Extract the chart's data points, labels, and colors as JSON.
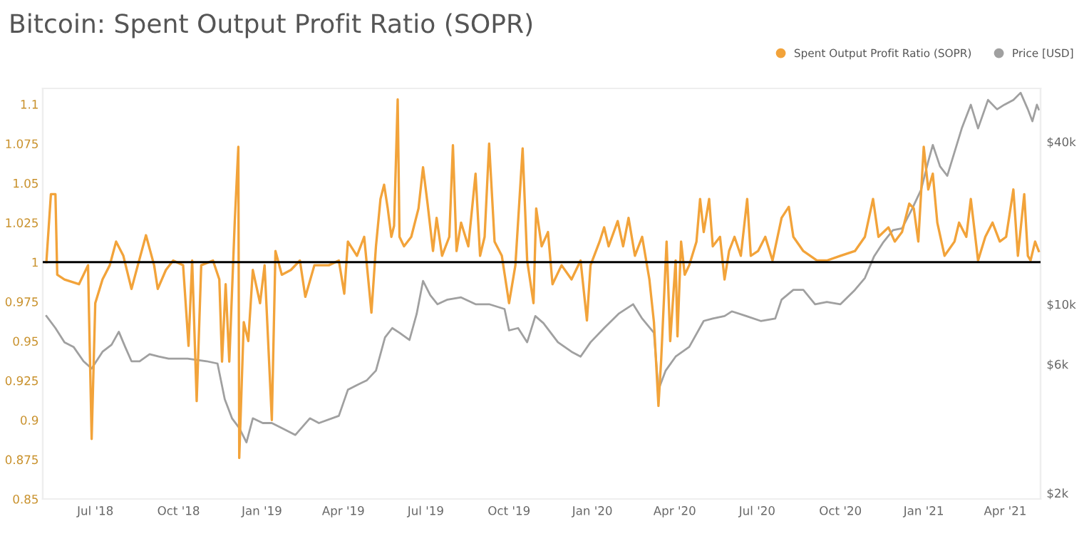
{
  "chart_data": {
    "type": "line",
    "title": "Bitcoin: Spent Output Profit Ratio (SOPR)",
    "xlim": [
      "2018-05-04",
      "2021-05-10"
    ],
    "xticks": [
      {
        "value": "2018-07-01",
        "label": "Jul '18"
      },
      {
        "value": "2018-10-01",
        "label": "Oct '18"
      },
      {
        "value": "2019-01-01",
        "label": "Jan '19"
      },
      {
        "value": "2019-04-01",
        "label": "Apr '19"
      },
      {
        "value": "2019-07-01",
        "label": "Jul '19"
      },
      {
        "value": "2019-10-01",
        "label": "Oct '19"
      },
      {
        "value": "2020-01-01",
        "label": "Jan '20"
      },
      {
        "value": "2020-04-01",
        "label": "Apr '20"
      },
      {
        "value": "2020-07-01",
        "label": "Jul '20"
      },
      {
        "value": "2020-10-01",
        "label": "Oct '20"
      },
      {
        "value": "2021-01-01",
        "label": "Jan '21"
      },
      {
        "value": "2021-04-01",
        "label": "Apr '21"
      }
    ],
    "ylim": [
      0.85,
      1.11
    ],
    "yticks": [
      0.85,
      0.875,
      0.9,
      0.925,
      0.95,
      0.975,
      1,
      1.025,
      1.05,
      1.075,
      1.1
    ],
    "log": "y2",
    "y2lim": [
      1900,
      63000
    ],
    "y2ticks": [
      {
        "value": 2000,
        "label": "$2k"
      },
      {
        "value": 6000,
        "label": "$6k"
      },
      {
        "value": 10000,
        "label": "$10k"
      },
      {
        "value": 40000,
        "label": "$40k"
      }
    ],
    "grid": false,
    "legend": "top right",
    "marker": "none",
    "line_style": "solid",
    "ref_lines": [
      {
        "axis": "y",
        "value": 1,
        "color": "#000000"
      }
    ],
    "series": [
      {
        "name": "Spent Output Profit Ratio (SOPR)",
        "color": "#f2a33a",
        "x": [
          "2018-05-08",
          "2018-05-13",
          "2018-05-18",
          "2018-05-20",
          "2018-05-28",
          "2018-06-13",
          "2018-06-23",
          "2018-06-27",
          "2018-07-01",
          "2018-07-09",
          "2018-07-17",
          "2018-07-24",
          "2018-08-01",
          "2018-08-10",
          "2018-08-17",
          "2018-08-26",
          "2018-09-04",
          "2018-09-08",
          "2018-09-17",
          "2018-09-25",
          "2018-10-06",
          "2018-10-12",
          "2018-10-16",
          "2018-10-21",
          "2018-10-26",
          "2018-11-08",
          "2018-11-15",
          "2018-11-18",
          "2018-11-22",
          "2018-11-26",
          "2018-12-02",
          "2018-12-04",
          "2018-12-06",
          "2018-12-07",
          "2018-12-12",
          "2018-12-17",
          "2018-12-22",
          "2018-12-30",
          "2019-01-04",
          "2019-01-12",
          "2019-01-16",
          "2019-01-23",
          "2019-02-02",
          "2019-02-12",
          "2019-02-18",
          "2019-02-28",
          "2019-03-16",
          "2019-03-27",
          "2019-04-02",
          "2019-04-06",
          "2019-04-16",
          "2019-04-24",
          "2019-05-02",
          "2019-05-07",
          "2019-05-12",
          "2019-05-16",
          "2019-05-20",
          "2019-05-24",
          "2019-05-27",
          "2019-05-31",
          "2019-06-02",
          "2019-06-07",
          "2019-06-15",
          "2019-06-23",
          "2019-06-28",
          "2019-07-03",
          "2019-07-09",
          "2019-07-13",
          "2019-07-19",
          "2019-07-27",
          "2019-07-31",
          "2019-08-04",
          "2019-08-09",
          "2019-08-17",
          "2019-08-25",
          "2019-08-30",
          "2019-09-04",
          "2019-09-09",
          "2019-09-15",
          "2019-09-23",
          "2019-10-01",
          "2019-10-08",
          "2019-10-16",
          "2019-10-21",
          "2019-10-28",
          "2019-10-31",
          "2019-11-06",
          "2019-11-13",
          "2019-11-18",
          "2019-11-28",
          "2019-12-09",
          "2019-12-19",
          "2019-12-26",
          "2019-12-30",
          "2020-01-09",
          "2020-01-14",
          "2020-01-19",
          "2020-01-29",
          "2020-02-04",
          "2020-02-10",
          "2020-02-17",
          "2020-02-25",
          "2020-03-04",
          "2020-03-09",
          "2020-03-14",
          "2020-03-17",
          "2020-03-23",
          "2020-03-27",
          "2020-04-02",
          "2020-04-04",
          "2020-04-08",
          "2020-04-12",
          "2020-04-17",
          "2020-04-25",
          "2020-04-29",
          "2020-05-03",
          "2020-05-09",
          "2020-05-13",
          "2020-05-21",
          "2020-05-26",
          "2020-05-31",
          "2020-06-06",
          "2020-06-13",
          "2020-06-20",
          "2020-06-24",
          "2020-07-02",
          "2020-07-10",
          "2020-07-18",
          "2020-07-28",
          "2020-08-05",
          "2020-08-10",
          "2020-08-21",
          "2020-09-05",
          "2020-09-16",
          "2020-10-01",
          "2020-10-17",
          "2020-10-28",
          "2020-11-06",
          "2020-11-12",
          "2020-11-23",
          "2020-11-30",
          "2020-12-08",
          "2020-12-16",
          "2020-12-21",
          "2020-12-26",
          "2021-01-01",
          "2021-01-06",
          "2021-01-11",
          "2021-01-16",
          "2021-01-24",
          "2021-02-04",
          "2021-02-09",
          "2021-02-17",
          "2021-02-22",
          "2021-03-02",
          "2021-03-10",
          "2021-03-18",
          "2021-03-26",
          "2021-04-02",
          "2021-04-10",
          "2021-04-15",
          "2021-04-22",
          "2021-04-26",
          "2021-04-29",
          "2021-05-04",
          "2021-05-08"
        ],
        "values": [
          1.0,
          1.043,
          1.043,
          0.992,
          0.989,
          0.986,
          0.998,
          0.888,
          0.974,
          0.989,
          0.998,
          1.013,
          1.004,
          0.983,
          0.998,
          1.017,
          0.998,
          0.983,
          0.995,
          1.001,
          0.998,
          0.947,
          1.001,
          0.912,
          0.998,
          1.001,
          0.989,
          0.937,
          0.986,
          0.937,
          1.025,
          1.049,
          1.073,
          0.876,
          0.962,
          0.95,
          0.995,
          0.974,
          0.998,
          0.9,
          1.007,
          0.992,
          0.995,
          1.001,
          0.978,
          0.998,
          0.998,
          1.001,
          0.98,
          1.013,
          1.004,
          1.016,
          0.968,
          1.01,
          1.04,
          1.049,
          1.034,
          1.016,
          1.023,
          1.103,
          1.016,
          1.01,
          1.016,
          1.034,
          1.06,
          1.037,
          1.007,
          1.028,
          1.004,
          1.016,
          1.074,
          1.007,
          1.025,
          1.01,
          1.056,
          1.004,
          1.016,
          1.075,
          1.013,
          1.004,
          0.974,
          0.998,
          1.072,
          1.001,
          0.974,
          1.034,
          1.01,
          1.019,
          0.986,
          0.998,
          0.989,
          1.001,
          0.963,
          0.998,
          1.013,
          1.022,
          1.01,
          1.026,
          1.01,
          1.028,
          1.004,
          1.016,
          0.989,
          0.962,
          0.909,
          0.938,
          1.013,
          0.95,
          1.001,
          0.953,
          1.013,
          0.992,
          0.998,
          1.013,
          1.04,
          1.019,
          1.04,
          1.01,
          1.016,
          0.989,
          1.007,
          1.016,
          1.004,
          1.04,
          1.004,
          1.007,
          1.016,
          1.001,
          1.028,
          1.035,
          1.016,
          1.007,
          1.001,
          1.001,
          1.004,
          1.007,
          1.016,
          1.04,
          1.016,
          1.022,
          1.013,
          1.019,
          1.037,
          1.034,
          1.013,
          1.073,
          1.046,
          1.056,
          1.025,
          1.004,
          1.013,
          1.025,
          1.016,
          1.04,
          1.001,
          1.016,
          1.025,
          1.013,
          1.016,
          1.046,
          1.004,
          1.043,
          1.004,
          1.001,
          1.013,
          1.007
        ]
      },
      {
        "name": "Price [USD]",
        "color": "#a0a0a0",
        "axis": "y2",
        "x": [
          "2018-05-08",
          "2018-05-18",
          "2018-05-28",
          "2018-06-07",
          "2018-06-18",
          "2018-06-27",
          "2018-07-09",
          "2018-07-19",
          "2018-07-27",
          "2018-08-03",
          "2018-08-10",
          "2018-08-19",
          "2018-08-30",
          "2018-09-09",
          "2018-09-20",
          "2018-10-11",
          "2018-11-01",
          "2018-11-13",
          "2018-11-21",
          "2018-11-29",
          "2018-12-07",
          "2018-12-15",
          "2018-12-22",
          "2019-01-02",
          "2019-01-12",
          "2019-01-23",
          "2019-02-07",
          "2019-02-23",
          "2019-03-05",
          "2019-03-27",
          "2019-04-06",
          "2019-04-16",
          "2019-04-27",
          "2019-05-07",
          "2019-05-17",
          "2019-05-25",
          "2019-06-02",
          "2019-06-13",
          "2019-06-21",
          "2019-06-28",
          "2019-07-06",
          "2019-07-14",
          "2019-07-25",
          "2019-08-09",
          "2019-08-25",
          "2019-09-09",
          "2019-09-26",
          "2019-10-01",
          "2019-10-11",
          "2019-10-21",
          "2019-10-30",
          "2019-11-08",
          "2019-11-24",
          "2019-12-09",
          "2019-12-19",
          "2019-12-30",
          "2020-01-14",
          "2020-01-30",
          "2020-02-15",
          "2020-02-25",
          "2020-03-09",
          "2020-03-14",
          "2020-03-22",
          "2020-04-02",
          "2020-04-17",
          "2020-05-03",
          "2020-05-13",
          "2020-05-26",
          "2020-06-03",
          "2020-06-19",
          "2020-07-05",
          "2020-07-21",
          "2020-07-28",
          "2020-08-10",
          "2020-08-21",
          "2020-09-03",
          "2020-09-16",
          "2020-10-01",
          "2020-10-17",
          "2020-10-28",
          "2020-11-07",
          "2020-11-17",
          "2020-11-28",
          "2020-12-08",
          "2020-12-19",
          "2020-12-29",
          "2021-01-06",
          "2021-01-11",
          "2021-01-19",
          "2021-01-27",
          "2021-02-04",
          "2021-02-12",
          "2021-02-22",
          "2021-03-02",
          "2021-03-13",
          "2021-03-23",
          "2021-03-31",
          "2021-04-10",
          "2021-04-18",
          "2021-04-26",
          "2021-05-01",
          "2021-05-06",
          "2021-05-08"
        ],
        "values": [
          9040,
          8160,
          7230,
          6950,
          6150,
          5780,
          6670,
          7080,
          7910,
          6950,
          6150,
          6150,
          6530,
          6400,
          6290,
          6290,
          6150,
          6030,
          4450,
          3780,
          3480,
          3080,
          3780,
          3630,
          3630,
          3480,
          3280,
          3780,
          3630,
          3860,
          4820,
          5020,
          5230,
          5680,
          7530,
          8160,
          7840,
          7370,
          9220,
          12200,
          10800,
          10000,
          10400,
          10600,
          10000,
          10000,
          9600,
          8000,
          8160,
          7230,
          9040,
          8510,
          7230,
          6670,
          6400,
          7230,
          8160,
          9220,
          10000,
          8850,
          7840,
          4820,
          5680,
          6400,
          6950,
          8670,
          8850,
          9040,
          9410,
          9040,
          8670,
          8850,
          10400,
          11300,
          11300,
          10000,
          10200,
          10000,
          11300,
          12500,
          15000,
          16900,
          18800,
          19100,
          22500,
          26500,
          33800,
          38900,
          32400,
          29900,
          36600,
          44800,
          54800,
          44800,
          57100,
          52700,
          54800,
          57100,
          60700,
          52700,
          47600,
          54800,
          52700
        ]
      }
    ]
  }
}
